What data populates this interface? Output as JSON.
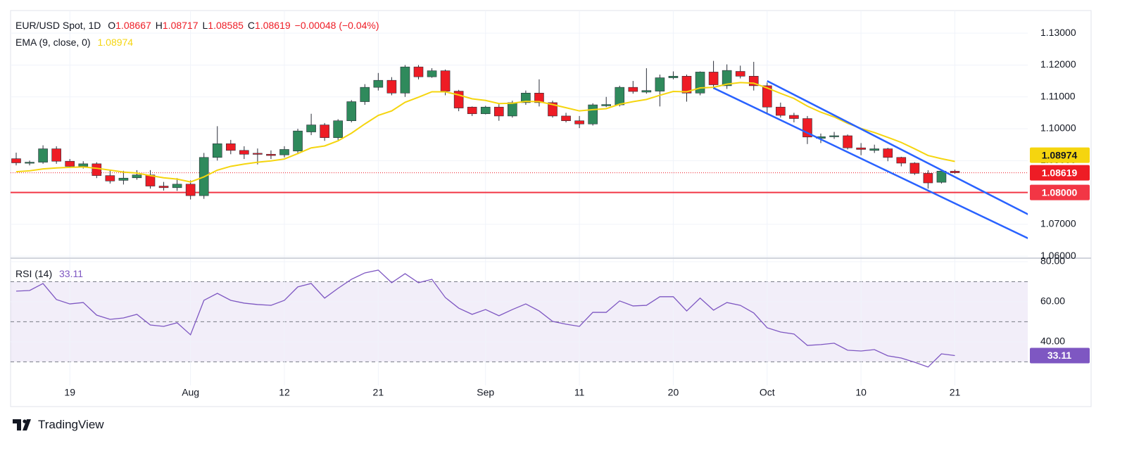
{
  "chart_data": [
    {
      "type": "candlestick",
      "title": "EUR/USD Spot, 1D",
      "ohlc_keys": [
        "O",
        "H",
        "L",
        "C"
      ],
      "change": "−0.00048 (−0.04%)",
      "categories": [
        null,
        null,
        null,
        null,
        "19",
        null,
        null,
        null,
        null,
        null,
        null,
        null,
        null,
        "Aug",
        null,
        null,
        null,
        null,
        null,
        null,
        "12",
        null,
        null,
        null,
        null,
        null,
        null,
        "21",
        null,
        null,
        null,
        null,
        null,
        null,
        null,
        "Sep",
        null,
        null,
        null,
        null,
        null,
        null,
        "11",
        null,
        null,
        null,
        null,
        null,
        null,
        "20",
        null,
        null,
        null,
        null,
        null,
        null,
        "Oct",
        null,
        null,
        null,
        null,
        null,
        null,
        "10",
        null,
        null,
        null,
        null,
        null,
        null,
        "21"
      ],
      "series": [
        {
          "up_color": "#2f8a5c",
          "down_color": "#ee1c25",
          "open": [
            1.0906,
            1.0893,
            1.0895,
            1.0937,
            1.0898,
            1.0882,
            1.089,
            1.0853,
            1.0838,
            1.0846,
            1.0855,
            1.082,
            1.0815,
            1.0826,
            1.079,
            1.091,
            1.0953,
            1.0932,
            1.0923,
            1.092,
            1.0918,
            1.093,
            1.099,
            1.1012,
            1.0972,
            1.1025,
            1.1085,
            1.113,
            1.1152,
            1.1112,
            1.1194,
            1.1163,
            1.1182,
            1.1118,
            1.1068,
            1.1047,
            1.1068,
            1.104,
            1.1082,
            1.1112,
            1.1082,
            1.104,
            1.1025,
            1.1015,
            1.1072,
            1.1075,
            1.113,
            1.1115,
            1.1118,
            1.116,
            1.1165,
            1.1112,
            1.1178,
            1.1135,
            1.118,
            1.1165,
            1.1135,
            1.1068,
            1.1042,
            1.1032,
            1.097,
            1.0975,
            1.0978,
            1.094,
            1.0932,
            1.0937,
            1.091,
            1.0892,
            1.086,
            1.0832,
            1.08667
          ],
          "high": [
            1.0925,
            1.09,
            1.0948,
            1.0945,
            1.0905,
            1.0898,
            1.0895,
            1.087,
            1.0868,
            1.087,
            1.087,
            1.0833,
            1.0845,
            1.0838,
            1.0924,
            1.1008,
            1.0965,
            1.0945,
            1.0938,
            1.0932,
            1.0945,
            1.1,
            1.1047,
            1.1018,
            1.103,
            1.109,
            1.114,
            1.1175,
            1.1162,
            1.12,
            1.12,
            1.119,
            1.1186,
            1.1122,
            1.107,
            1.1072,
            1.1078,
            1.1088,
            1.112,
            1.1155,
            1.1088,
            1.105,
            1.104,
            1.108,
            1.11,
            1.1135,
            1.115,
            1.119,
            1.117,
            1.118,
            1.117,
            1.118,
            1.1213,
            1.1202,
            1.1198,
            1.121,
            1.1145,
            1.1082,
            1.105,
            1.104,
            1.0985,
            1.099,
            1.0982,
            1.0955,
            1.095,
            1.094,
            1.0912,
            1.0895,
            1.087,
            1.087,
            1.08717
          ],
          "low": [
            1.0885,
            1.0885,
            1.089,
            1.089,
            1.0877,
            1.0875,
            1.0845,
            1.0828,
            1.0825,
            1.084,
            1.0812,
            1.0806,
            1.0805,
            1.0778,
            1.078,
            1.09,
            1.092,
            1.0905,
            1.0888,
            1.0905,
            1.091,
            1.092,
            1.098,
            1.0962,
            1.0965,
            1.102,
            1.1075,
            1.112,
            1.1105,
            1.11,
            1.1155,
            1.116,
            1.1105,
            1.1055,
            1.104,
            1.1045,
            1.1025,
            1.1035,
            1.1075,
            1.107,
            1.1035,
            1.102,
            1.1002,
            1.101,
            1.1068,
            1.107,
            1.111,
            1.111,
            1.107,
            1.1155,
            1.1085,
            1.1105,
            1.1125,
            1.1125,
            1.1158,
            1.112,
            1.1045,
            1.1035,
            1.102,
            1.0952,
            1.0955,
            1.0968,
            1.0935,
            1.0917,
            1.0924,
            1.0898,
            1.0882,
            1.0855,
            1.0812,
            1.0828,
            1.08585
          ],
          "close": [
            1.0893,
            1.0895,
            1.0937,
            1.0898,
            1.0882,
            1.089,
            1.0853,
            1.0836,
            1.0845,
            1.0855,
            1.082,
            1.0815,
            1.0826,
            1.079,
            1.091,
            1.0953,
            1.0932,
            1.092,
            1.092,
            1.0916,
            1.0935,
            1.0993,
            1.1012,
            1.0972,
            1.1025,
            1.1085,
            1.113,
            1.1152,
            1.1112,
            1.1194,
            1.1163,
            1.1182,
            1.1118,
            1.1065,
            1.1047,
            1.1068,
            1.104,
            1.1082,
            1.1112,
            1.1082,
            1.104,
            1.1025,
            1.1015,
            1.1075,
            1.1076,
            1.113,
            1.1117,
            1.112,
            1.116,
            1.1165,
            1.1112,
            1.1178,
            1.1138,
            1.1183,
            1.1165,
            1.1135,
            1.1068,
            1.1042,
            1.1032,
            1.0974,
            1.0975,
            1.0978,
            1.094,
            1.0935,
            1.0937,
            1.091,
            1.0892,
            1.086,
            1.083,
            1.0867,
            1.08619
          ]
        },
        {
          "name": "EMA (9, close, 0)",
          "type": "line",
          "color": "#f5d50f",
          "values": [
            1.0865,
            1.0868,
            1.0874,
            1.0877,
            1.0879,
            1.088,
            1.0876,
            1.087,
            1.0864,
            1.0861,
            1.0853,
            1.0846,
            1.0842,
            1.0833,
            1.0849,
            1.087,
            1.0882,
            1.0889,
            1.0895,
            1.0899,
            1.0905,
            1.0922,
            1.094,
            1.0946,
            1.0962,
            1.0986,
            1.1015,
            1.1042,
            1.1056,
            1.1083,
            1.1099,
            1.1116,
            1.1116,
            1.1106,
            1.1094,
            1.1089,
            1.1079,
            1.108,
            1.1086,
            1.1085,
            1.1076,
            1.1066,
            1.1056,
            1.106,
            1.1063,
            1.1077,
            1.1085,
            1.1092,
            1.1105,
            1.1117,
            1.1116,
            1.1128,
            1.113,
            1.114,
            1.1145,
            1.1143,
            1.1128,
            1.1111,
            1.1095,
            1.1071,
            1.1052,
            1.1037,
            1.1017,
            1.1001,
            1.0988,
            1.0973,
            1.0957,
            1.0937,
            1.0916,
            1.0906,
            1.08974
          ]
        }
      ],
      "hlines": [
        {
          "value": 1.08,
          "label": "1.08000",
          "color": "#f23645"
        }
      ],
      "trendlines": [
        {
          "color": "#2962ff",
          "x": [
            56,
            75.7
          ],
          "y": [
            1.115,
            1.0726
          ]
        },
        {
          "color": "#2962ff",
          "x": [
            52,
            75.7
          ],
          "y": [
            1.1128,
            1.0651
          ]
        }
      ],
      "ylim": [
        1.0596,
        1.1371
      ],
      "yticks": [
        {
          "value": 1.13,
          "label": "1.13000"
        },
        {
          "value": 1.12,
          "label": "1.12000"
        },
        {
          "value": 1.11,
          "label": "1.11000"
        },
        {
          "value": 1.1,
          "label": "1.10000"
        },
        {
          "value": 1.09,
          "label": "1.09000"
        },
        {
          "value": 1.08,
          "label": "1.08000"
        },
        {
          "value": 1.07,
          "label": "1.07000"
        },
        {
          "value": 1.06,
          "label": "1.06000"
        }
      ],
      "grid": true
    },
    {
      "type": "line",
      "series": [
        {
          "name": "RSI (14)",
          "color": "#7e57c2",
          "values": [
            65.3,
            65.6,
            69.1,
            61.1,
            58.9,
            59.6,
            53.3,
            51.2,
            51.9,
            53.7,
            48.4,
            47.7,
            49.5,
            43.5,
            60.7,
            64.2,
            60.7,
            59.3,
            58.6,
            58.2,
            60.7,
            67.4,
            69.1,
            61.8,
            66.7,
            71.2,
            74.4,
            75.8,
            69.5,
            74.0,
            69.5,
            71.2,
            62.1,
            56.8,
            53.7,
            56.1,
            53.0,
            56.1,
            58.9,
            55.4,
            50.2,
            48.8,
            47.7,
            54.7,
            54.7,
            60.4,
            57.9,
            58.2,
            62.5,
            62.5,
            55.4,
            61.8,
            55.8,
            59.6,
            58.2,
            54.4,
            47.0,
            44.9,
            43.9,
            38.2,
            38.6,
            39.3,
            35.8,
            35.4,
            36.1,
            33.0,
            31.9,
            29.8,
            27.4,
            34.0,
            33.11
          ]
        }
      ],
      "levels": [
        70,
        50,
        30
      ],
      "ylim": [
        18.2,
        81.4
      ],
      "yticks": [
        {
          "value": 80,
          "label": "80.00"
        },
        {
          "value": 60,
          "label": "60.00"
        },
        {
          "value": 40,
          "label": "40.00"
        }
      ],
      "grid": true
    }
  ],
  "watermark": "TradingView"
}
